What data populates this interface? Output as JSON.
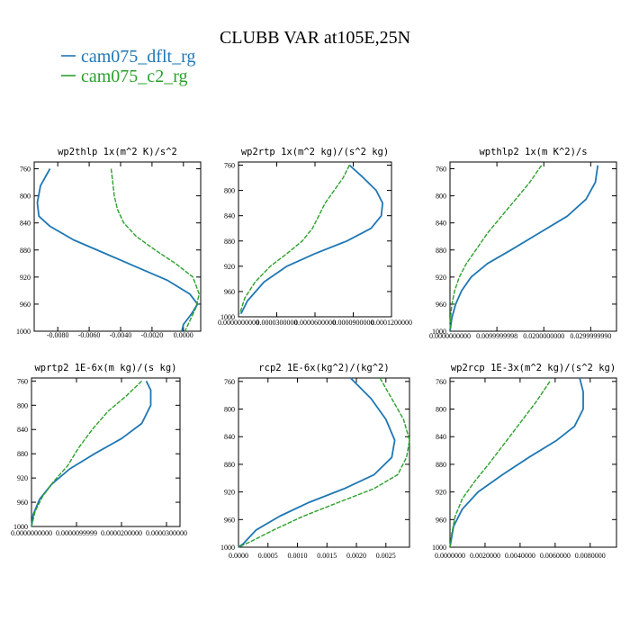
{
  "figure": {
    "title": "CLUBB VAR at105E,25N",
    "legend": [
      {
        "label": "cam075_dflt_rg",
        "color": "#1f77b4"
      },
      {
        "label": "cam075_c2_rg",
        "color": "#2ca02c"
      }
    ]
  },
  "chart_data": [
    {
      "type": "line",
      "title": "wp2thlp   1x(m^2 K)/s^2",
      "xlim": [
        -0.0095,
        0.0011
      ],
      "ylim": [
        1000,
        750
      ],
      "xticks": [
        -0.008,
        -0.006,
        -0.004,
        -0.002,
        0.0
      ],
      "xtick_labels": [
        "-0.0080",
        "-0.0060",
        "-0.0040",
        "-0.0020",
        "0.0000"
      ],
      "yticks": [
        760,
        800,
        840,
        880,
        920,
        960,
        1000
      ],
      "ytick_labels": [
        "760",
        "800",
        "840",
        "880",
        "920",
        "960",
        "1000"
      ],
      "series": [
        {
          "name": "cam075_dflt_rg",
          "color": "#1f77b4",
          "dashed": false,
          "x": [
            -0.0085,
            -0.0091,
            -0.0093,
            -0.0092,
            -0.0085,
            -0.007,
            -0.005,
            -0.003,
            -0.001,
            0.0004,
            0.0009,
            0.0005,
            0.0,
            -0.0001
          ],
          "y": [
            760,
            785,
            810,
            830,
            845,
            865,
            885,
            905,
            925,
            945,
            960,
            975,
            990,
            1000
          ]
        },
        {
          "name": "cam075_c2_rg",
          "color": "#2ca02c",
          "dashed": true,
          "x": [
            -0.0046,
            -0.0045,
            -0.0044,
            -0.0042,
            -0.0038,
            -0.003,
            -0.0018,
            -0.0005,
            0.0006,
            0.001,
            0.0008,
            0.0004,
            0.0001
          ],
          "y": [
            760,
            780,
            800,
            820,
            840,
            860,
            880,
            900,
            920,
            945,
            965,
            985,
            1000
          ]
        }
      ]
    },
    {
      "type": "line",
      "title": "wp2rtp   1x(m^2 kg)/(s^2 kg)",
      "xlim": [
        0.0,
        0.00012
      ],
      "ylim": [
        1000,
        755
      ],
      "xticks": [
        0.0,
        3e-05,
        6e-05,
        9e-05,
        0.00012
      ],
      "xtick_labels": [
        "0.0000000000",
        "0.0000300000",
        "0.0000600000",
        "0.0000900000",
        "0.0001200000"
      ],
      "yticks": [
        760,
        800,
        840,
        880,
        920,
        960,
        1000
      ],
      "ytick_labels": [
        "760",
        "800",
        "840",
        "880",
        "920",
        "960",
        "1000"
      ],
      "series": [
        {
          "name": "cam075_dflt_rg",
          "color": "#1f77b4",
          "dashed": false,
          "x": [
            8.7e-05,
            9.8e-05,
            0.000108,
            0.000113,
            0.000112,
            0.000104,
            8.5e-05,
            6e-05,
            3.8e-05,
            2e-05,
            7e-06,
            2e-06
          ],
          "y": [
            760,
            780,
            800,
            820,
            840,
            860,
            880,
            900,
            920,
            945,
            975,
            995
          ]
        },
        {
          "name": "cam075_c2_rg",
          "color": "#2ca02c",
          "dashed": true,
          "x": [
            8.7e-05,
            8.2e-05,
            7.5e-05,
            6.8e-05,
            6.3e-05,
            5.8e-05,
            5e-05,
            3.8e-05,
            2.5e-05,
            1.3e-05,
            5e-06,
            1e-06
          ],
          "y": [
            760,
            780,
            800,
            820,
            840,
            860,
            880,
            900,
            920,
            945,
            970,
            995
          ]
        }
      ]
    },
    {
      "type": "line",
      "title": "wpthlp2   1x(m K^2)/s",
      "xlim": [
        0.0,
        0.0355
      ],
      "ylim": [
        1000,
        750
      ],
      "xticks": [
        0.0,
        0.01,
        0.02,
        0.03
      ],
      "xtick_labels": [
        "0.0000000000",
        "0.0099999998",
        "0.0200000000",
        "0.0299999990"
      ],
      "yticks": [
        760,
        800,
        840,
        880,
        920,
        960,
        1000
      ],
      "ytick_labels": [
        "760",
        "800",
        "840",
        "880",
        "920",
        "960",
        "1000"
      ],
      "series": [
        {
          "name": "cam075_dflt_rg",
          "color": "#1f77b4",
          "dashed": false,
          "x": [
            0.0315,
            0.031,
            0.029,
            0.025,
            0.019,
            0.013,
            0.008,
            0.0045,
            0.0025,
            0.0012,
            0.0004,
            0.0
          ],
          "y": [
            755,
            780,
            805,
            830,
            855,
            880,
            900,
            920,
            940,
            960,
            980,
            1000
          ]
        },
        {
          "name": "cam075_c2_rg",
          "color": "#2ca02c",
          "dashed": true,
          "x": [
            0.0195,
            0.017,
            0.014,
            0.011,
            0.008,
            0.0055,
            0.0035,
            0.002,
            0.001,
            0.0004,
            0.0001,
            0.0
          ],
          "y": [
            755,
            780,
            805,
            830,
            855,
            880,
            900,
            920,
            940,
            960,
            980,
            1000
          ]
        }
      ]
    },
    {
      "type": "line",
      "title": "wprtp2   1E-6x(m kg)/(s kg)",
      "xlim": [
        0.0,
        3.3e-05
      ],
      "ylim": [
        1000,
        755
      ],
      "xticks": [
        0.0,
        1e-05,
        2e-05,
        3e-05
      ],
      "xtick_labels": [
        "0.0000000000",
        "0.0000099999",
        "0.0000200000",
        "0.0000300000"
      ],
      "yticks": [
        760,
        800,
        840,
        880,
        920,
        960,
        1000
      ],
      "ytick_labels": [
        "760",
        "800",
        "840",
        "880",
        "920",
        "960",
        "1000"
      ],
      "series": [
        {
          "name": "cam075_dflt_rg",
          "color": "#1f77b4",
          "dashed": false,
          "x": [
            2.55e-05,
            2.65e-05,
            2.65e-05,
            2.45e-05,
            2e-05,
            1.4e-05,
            8.5e-06,
            4.5e-06,
            1.8e-06,
            4e-07,
            0.0
          ],
          "y": [
            760,
            775,
            800,
            830,
            855,
            880,
            905,
            930,
            955,
            980,
            1000
          ]
        },
        {
          "name": "cam075_c2_rg",
          "color": "#2ca02c",
          "dashed": true,
          "x": [
            2.45e-05,
            2.1e-05,
            1.7e-05,
            1.35e-05,
            1.05e-05,
            8e-06,
            5e-06,
            2.5e-06,
            8e-07,
            0.0
          ],
          "y": [
            760,
            785,
            810,
            840,
            870,
            900,
            925,
            950,
            975,
            1000
          ]
        }
      ]
    },
    {
      "type": "line",
      "title": "rcp2   1E-6x(kg^2)/(kg^2)",
      "xlim": [
        0.0,
        0.0029
      ],
      "ylim": [
        1000,
        755
      ],
      "xticks": [
        0.0,
        0.0005,
        0.001,
        0.0015,
        0.002,
        0.0025
      ],
      "xtick_labels": [
        "0.0000",
        "0.0005",
        "0.0010",
        "0.0015",
        "0.0020",
        "0.0025"
      ],
      "yticks": [
        760,
        800,
        840,
        880,
        920,
        960,
        1000
      ],
      "ytick_labels": [
        "760",
        "800",
        "840",
        "880",
        "920",
        "960",
        "1000"
      ],
      "series": [
        {
          "name": "cam075_dflt_rg",
          "color": "#1f77b4",
          "dashed": false,
          "x": [
            0.0019,
            0.00225,
            0.0025,
            0.00265,
            0.0026,
            0.0023,
            0.0018,
            0.0012,
            0.0007,
            0.0003,
            8e-05,
            0.0
          ],
          "y": [
            755,
            785,
            815,
            845,
            870,
            895,
            915,
            935,
            955,
            975,
            995,
            1000
          ]
        },
        {
          "name": "cam075_c2_rg",
          "color": "#2ca02c",
          "dashed": true,
          "x": [
            0.0024,
            0.0026,
            0.0028,
            0.0029,
            0.00285,
            0.0027,
            0.0023,
            0.0017,
            0.0011,
            0.0006,
            0.0002,
            0.0
          ],
          "y": [
            755,
            785,
            815,
            845,
            870,
            895,
            915,
            935,
            955,
            975,
            992,
            1000
          ]
        }
      ]
    },
    {
      "type": "line",
      "title": "wp2rcp   1E-3x(m^2 kg)/(s^2 kg)",
      "xlim": [
        0.0,
        0.0095
      ],
      "ylim": [
        1000,
        755
      ],
      "xticks": [
        0.0,
        0.002,
        0.004,
        0.006,
        0.008
      ],
      "xtick_labels": [
        "0.0000000",
        "0.0020000",
        "0.0040000",
        "0.0060000",
        "0.0080000"
      ],
      "yticks": [
        760,
        800,
        840,
        880,
        920,
        960,
        1000
      ],
      "ytick_labels": [
        "760",
        "800",
        "840",
        "880",
        "920",
        "960",
        "1000"
      ],
      "series": [
        {
          "name": "cam075_dflt_rg",
          "color": "#1f77b4",
          "dashed": false,
          "x": [
            0.0074,
            0.0076,
            0.0076,
            0.0071,
            0.0061,
            0.0045,
            0.003,
            0.0016,
            0.0007,
            0.0002,
            0.0
          ],
          "y": [
            755,
            775,
            800,
            825,
            845,
            870,
            895,
            920,
            945,
            970,
            1000
          ]
        },
        {
          "name": "cam075_c2_rg",
          "color": "#2ca02c",
          "dashed": true,
          "x": [
            0.0057,
            0.0049,
            0.004,
            0.0031,
            0.0022,
            0.0014,
            0.0007,
            0.0003,
            0.0001,
            0.0
          ],
          "y": [
            760,
            790,
            820,
            850,
            880,
            905,
            930,
            955,
            980,
            1000
          ]
        }
      ]
    }
  ]
}
